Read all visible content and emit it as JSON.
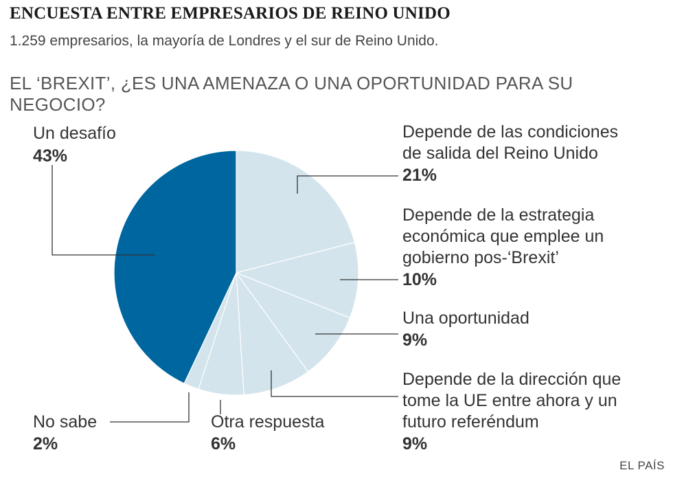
{
  "title": "ENCUESTA ENTRE EMPRESARIOS DE REINO UNIDO",
  "subtitle": "1.259 empresarios, la mayoría de Londres y el sur de Reino Unido.",
  "question": "EL ‘BREXIT’, ¿ES UNA AMENAZA O UNA OPORTUNIDAD PARA SU NEGOCIO?",
  "source": "EL PAÍS",
  "colors": {
    "highlight": "#00669f",
    "other": "#d3e4ec",
    "separator": "#ffffff",
    "leader": "#333333"
  },
  "chart_data": {
    "type": "pie",
    "title": "ENCUESTA ENTRE EMPRESARIOS DE REINO UNIDO",
    "slices": [
      {
        "label": "Depende de las condiciones de salida del Reino Unido",
        "value": 21,
        "value_label": "21%",
        "color": "#d3e4ec"
      },
      {
        "label": "Depende de la estrategia económica que emplee un gobierno pos-‘Brexit’",
        "value": 10,
        "value_label": "10%",
        "color": "#d3e4ec"
      },
      {
        "label": "Una oportunidad",
        "value": 9,
        "value_label": "9%",
        "color": "#d3e4ec"
      },
      {
        "label": "Depende de la dirección que tome la UE entre ahora y un futuro referéndum",
        "value": 9,
        "value_label": "9%",
        "color": "#d3e4ec"
      },
      {
        "label": "Otra respuesta",
        "value": 6,
        "value_label": "6%",
        "color": "#d3e4ec"
      },
      {
        "label": "No sabe",
        "value": 2,
        "value_label": "2%",
        "color": "#d3e4ec"
      },
      {
        "label": "Un desafío",
        "value": 43,
        "value_label": "43%",
        "color": "#00669f"
      }
    ]
  }
}
